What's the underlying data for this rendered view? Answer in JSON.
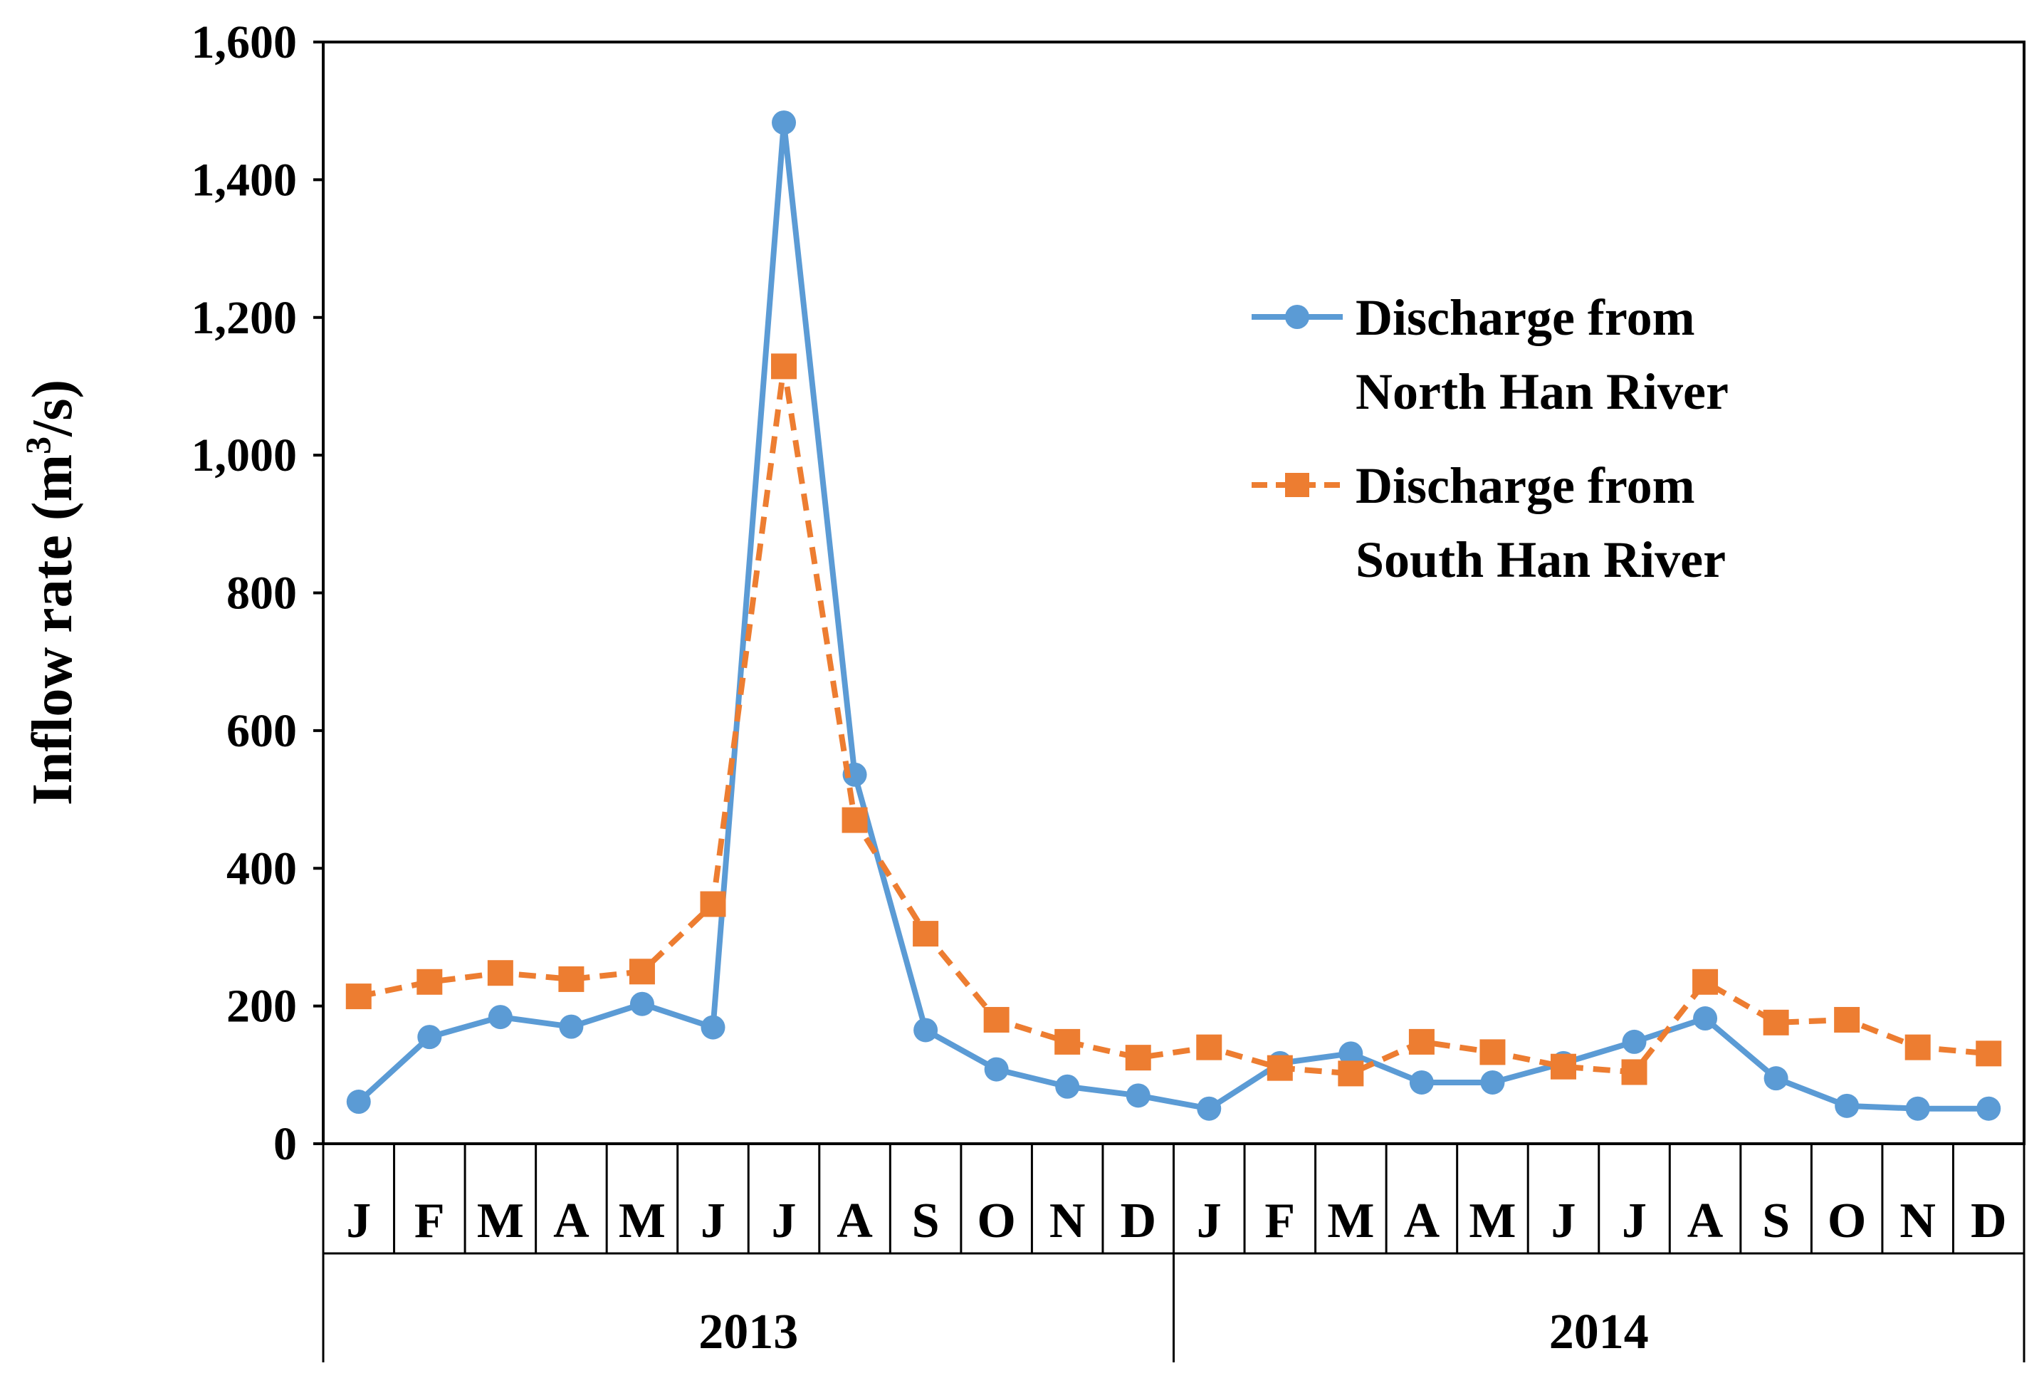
{
  "chart_data": {
    "type": "line",
    "title": "",
    "xlabel": "",
    "ylabel": "Inflow rate (m³/s)",
    "ylabel_parts": {
      "main": "Inflow rate (m",
      "sup": "3",
      "end": "/s)"
    },
    "ylim": [
      0,
      1600
    ],
    "yticks": [
      "0",
      "200",
      "400",
      "600",
      "800",
      "1,000",
      "1,200",
      "1,400",
      "1,600"
    ],
    "ytick_values": [
      0,
      200,
      400,
      600,
      800,
      1000,
      1200,
      1400,
      1600
    ],
    "categories": [
      "J",
      "F",
      "M",
      "A",
      "M",
      "J",
      "J",
      "A",
      "S",
      "O",
      "N",
      "D",
      "J",
      "F",
      "M",
      "A",
      "M",
      "J",
      "J",
      "A",
      "S",
      "O",
      "N",
      "D"
    ],
    "years": [
      "2013",
      "2014"
    ],
    "grid": false,
    "legend_position": "top-right",
    "series": [
      {
        "name": "Discharge from North Han River",
        "legend_lines": [
          "Discharge from",
          "North Han River"
        ],
        "color": "#5B9BD5",
        "marker": "circle",
        "linestyle": "solid",
        "values": [
          61,
          155,
          184,
          170,
          203,
          169,
          1483,
          536,
          165,
          108,
          83,
          70,
          51,
          117,
          131,
          89,
          89,
          117,
          148,
          182,
          95,
          55,
          51,
          51
        ]
      },
      {
        "name": "Discharge from South Han River",
        "legend_lines": [
          "Discharge from",
          "South Han River"
        ],
        "color": "#ED7D31",
        "marker": "square",
        "linestyle": "dashed",
        "values": [
          214,
          235,
          248,
          239,
          250,
          348,
          1129,
          470,
          305,
          180,
          148,
          125,
          140,
          110,
          102,
          148,
          133,
          112,
          104,
          235,
          176,
          180,
          140,
          131
        ]
      }
    ]
  }
}
